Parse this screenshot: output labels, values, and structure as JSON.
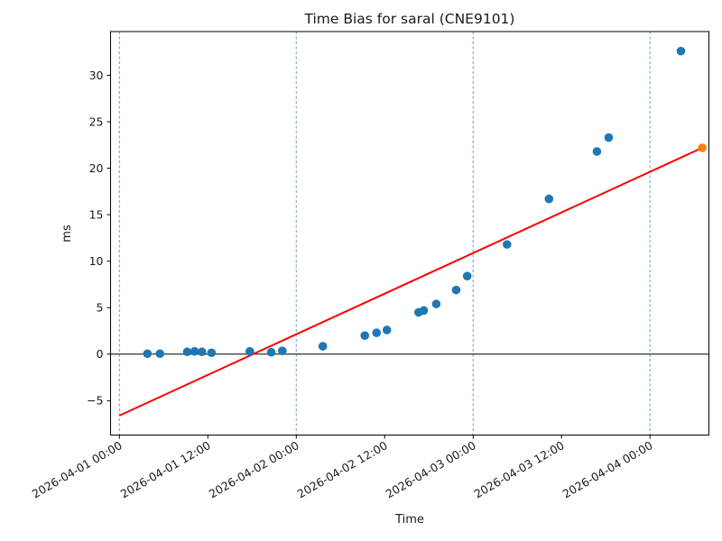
{
  "chart_data": {
    "type": "scatter",
    "title": "Time Bias for saral (CNE9101)",
    "xlabel": "Time",
    "ylabel": "ms",
    "x_unit": "hours since 2026-04-01 00:00",
    "xlim": [
      -1.2,
      80.0
    ],
    "ylim": [
      -8.7,
      34.7
    ],
    "grid": "vertical dashed lines at 00:00 day boundaries only",
    "legend": "none",
    "x_ticks": [
      {
        "hours": 0,
        "label": "2026-04-01 00:00",
        "grid": true
      },
      {
        "hours": 12,
        "label": "2026-04-01 12:00",
        "grid": false
      },
      {
        "hours": 24,
        "label": "2026-04-02 00:00",
        "grid": true
      },
      {
        "hours": 36,
        "label": "2026-04-02 12:00",
        "grid": false
      },
      {
        "hours": 48,
        "label": "2026-04-03 00:00",
        "grid": true
      },
      {
        "hours": 60,
        "label": "2026-04-03 12:00",
        "grid": false
      },
      {
        "hours": 72,
        "label": "2026-04-04 00:00",
        "grid": true
      }
    ],
    "y_ticks": [
      {
        "value": -5,
        "label": "−5"
      },
      {
        "value": 0,
        "label": "0"
      },
      {
        "value": 5,
        "label": "5"
      },
      {
        "value": 10,
        "label": "10"
      },
      {
        "value": 15,
        "label": "15"
      },
      {
        "value": 20,
        "label": "20"
      },
      {
        "value": 25,
        "label": "25"
      },
      {
        "value": 30,
        "label": "30"
      }
    ],
    "zero_line": {
      "value": 0,
      "color": "#000000"
    },
    "colors": {
      "observation_point": "#1f77b4",
      "highlight_point": "#ff7f0e",
      "trend_line": "#ff0000",
      "gridline": "#62a0ca",
      "spine": "#000000"
    },
    "series": [
      {
        "name": "time-bias-observations",
        "type": "scatter",
        "color": "#1f77b4",
        "marker_radius": 4.8,
        "points": [
          [
            3.8,
            0.05
          ],
          [
            5.5,
            0.05
          ],
          [
            9.2,
            0.25
          ],
          [
            10.2,
            0.3
          ],
          [
            11.2,
            0.25
          ],
          [
            12.5,
            0.15
          ],
          [
            17.7,
            0.3
          ],
          [
            20.6,
            0.2
          ],
          [
            22.1,
            0.35
          ],
          [
            27.6,
            0.85
          ],
          [
            33.3,
            2.0
          ],
          [
            34.9,
            2.3
          ],
          [
            36.3,
            2.6
          ],
          [
            40.6,
            4.5
          ],
          [
            41.3,
            4.7
          ],
          [
            43.0,
            5.4
          ],
          [
            45.7,
            6.9
          ],
          [
            47.2,
            8.4
          ],
          [
            52.6,
            11.8
          ],
          [
            58.3,
            16.7
          ],
          [
            64.8,
            21.8
          ],
          [
            66.4,
            23.3
          ],
          [
            76.2,
            32.6
          ]
        ]
      },
      {
        "name": "extrapolated-point",
        "type": "scatter",
        "color": "#ff7f0e",
        "marker_radius": 4.8,
        "points": [
          [
            79.1,
            22.2
          ]
        ]
      },
      {
        "name": "linear-trend",
        "type": "line",
        "color": "#ff0000",
        "width": 2,
        "points": [
          [
            0,
            -6.6
          ],
          [
            79.1,
            22.2
          ]
        ]
      }
    ]
  }
}
